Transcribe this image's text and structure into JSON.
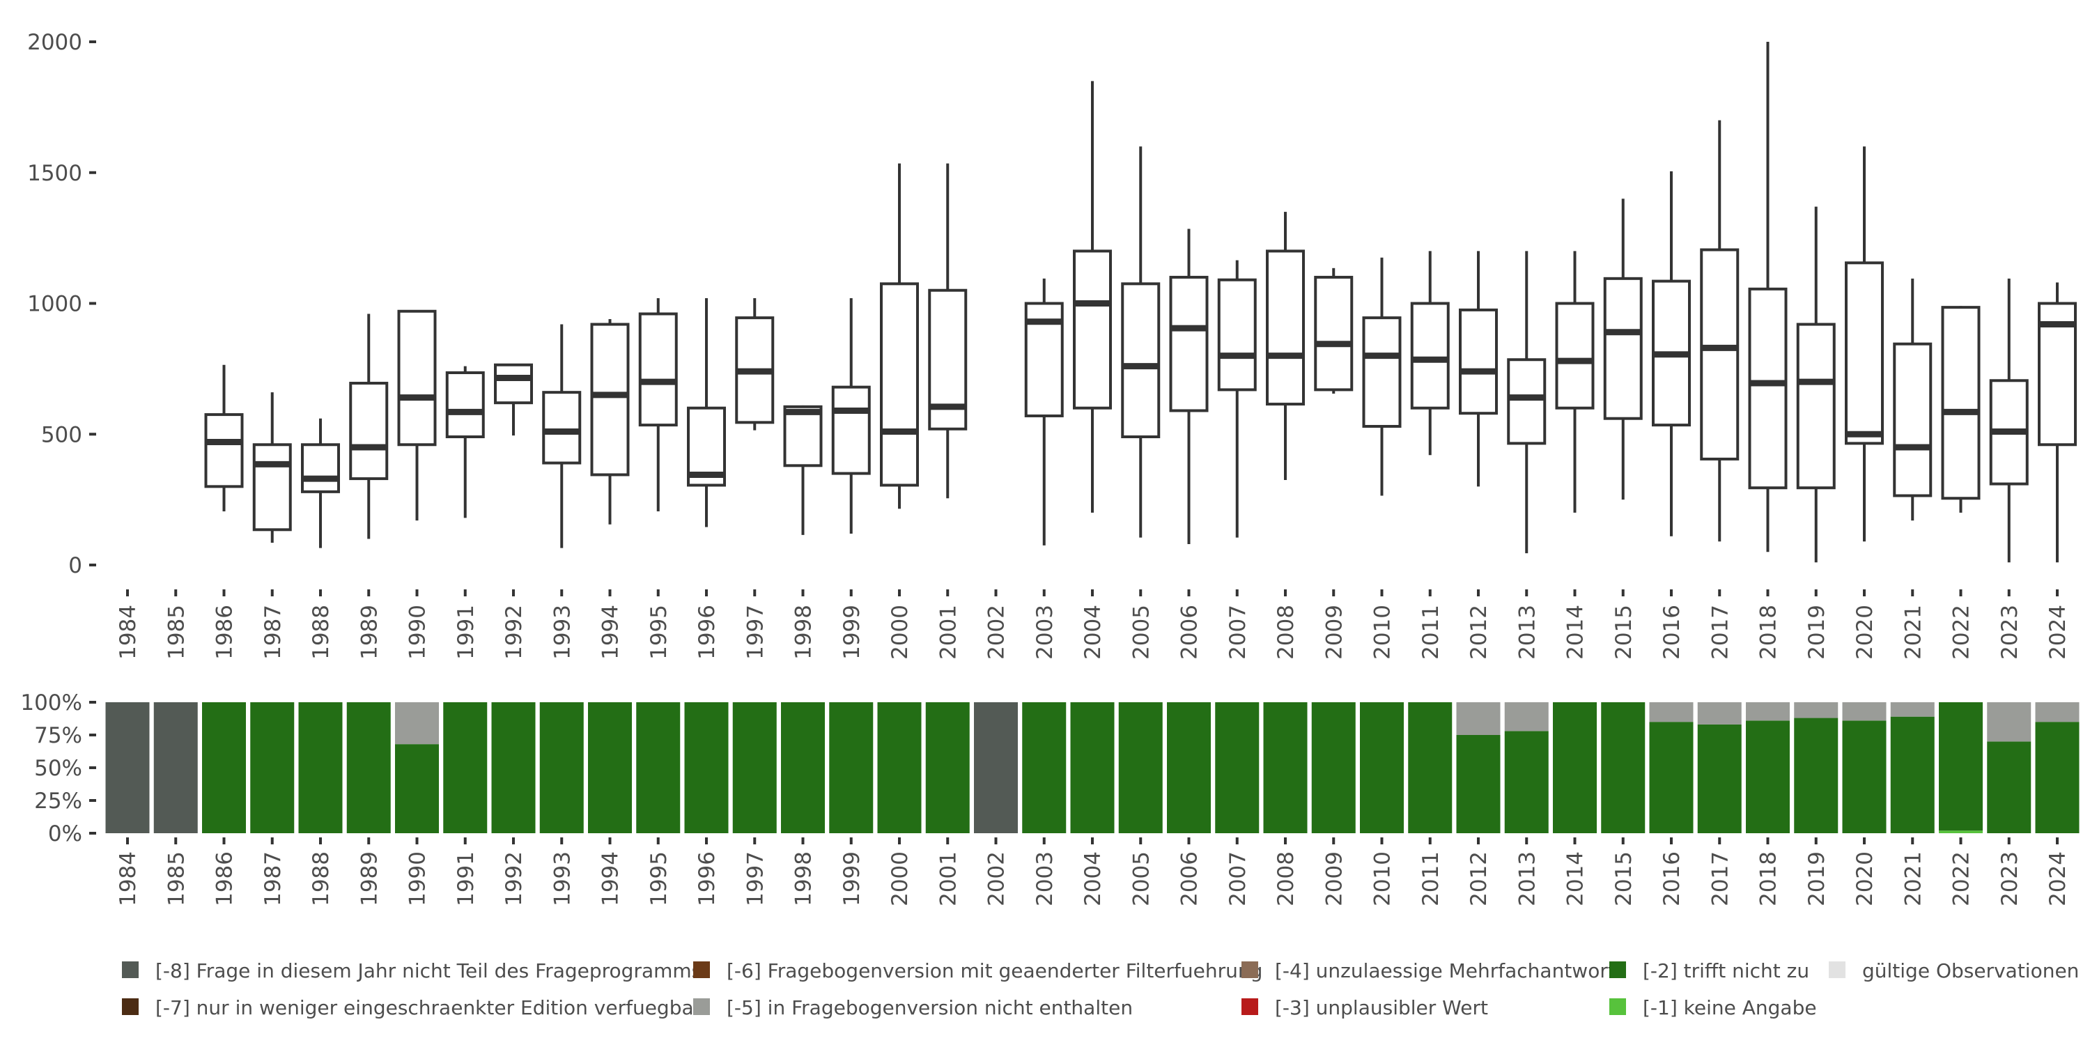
{
  "chart_data": [
    {
      "type": "boxplot",
      "title": "",
      "xlabel": "",
      "ylabel": "",
      "ylim": [
        0,
        2000
      ],
      "yticks": [
        0,
        500,
        1000,
        1500,
        2000
      ],
      "ytick_labels": [
        "0",
        "500",
        "1000",
        "1500",
        "2000"
      ],
      "categories": [
        "1984",
        "1985",
        "1986",
        "1987",
        "1988",
        "1989",
        "1990",
        "1991",
        "1992",
        "1993",
        "1994",
        "1995",
        "1996",
        "1997",
        "1998",
        "1999",
        "2000",
        "2001",
        "2002",
        "2003",
        "2004",
        "2005",
        "2006",
        "2007",
        "2008",
        "2009",
        "2010",
        "2011",
        "2012",
        "2013",
        "2014",
        "2015",
        "2016",
        "2017",
        "2018",
        "2019",
        "2020",
        "2021",
        "2022",
        "2023",
        "2024"
      ],
      "boxes": [
        null,
        null,
        {
          "min": 205,
          "q1": 300,
          "median": 470,
          "q3": 575,
          "max": 765
        },
        {
          "min": 85,
          "q1": 135,
          "median": 385,
          "q3": 460,
          "max": 660
        },
        {
          "min": 65,
          "q1": 280,
          "median": 330,
          "q3": 460,
          "max": 560
        },
        {
          "min": 100,
          "q1": 330,
          "median": 450,
          "q3": 695,
          "max": 960
        },
        {
          "min": 170,
          "q1": 460,
          "median": 640,
          "q3": 970,
          "max": 970
        },
        {
          "min": 180,
          "q1": 490,
          "median": 585,
          "q3": 735,
          "max": 760
        },
        {
          "min": 495,
          "q1": 620,
          "median": 715,
          "q3": 765,
          "max": 765
        },
        {
          "min": 65,
          "q1": 390,
          "median": 510,
          "q3": 660,
          "max": 920
        },
        {
          "min": 155,
          "q1": 345,
          "median": 650,
          "q3": 920,
          "max": 940
        },
        {
          "min": 205,
          "q1": 535,
          "median": 700,
          "q3": 960,
          "max": 1020
        },
        {
          "min": 145,
          "q1": 305,
          "median": 345,
          "q3": 600,
          "max": 1020
        },
        {
          "min": 515,
          "q1": 545,
          "median": 740,
          "q3": 945,
          "max": 1020
        },
        {
          "min": 115,
          "q1": 380,
          "median": 585,
          "q3": 605,
          "max": 610
        },
        {
          "min": 120,
          "q1": 350,
          "median": 590,
          "q3": 680,
          "max": 1020
        },
        {
          "min": 215,
          "q1": 305,
          "median": 510,
          "q3": 1075,
          "max": 1535
        },
        {
          "min": 255,
          "q1": 520,
          "median": 605,
          "q3": 1050,
          "max": 1535
        },
        null,
        {
          "min": 75,
          "q1": 570,
          "median": 930,
          "q3": 1000,
          "max": 1095
        },
        {
          "min": 200,
          "q1": 600,
          "median": 1000,
          "q3": 1200,
          "max": 1850
        },
        {
          "min": 105,
          "q1": 490,
          "median": 760,
          "q3": 1075,
          "max": 1600
        },
        {
          "min": 80,
          "q1": 590,
          "median": 905,
          "q3": 1100,
          "max": 1285
        },
        {
          "min": 105,
          "q1": 670,
          "median": 800,
          "q3": 1090,
          "max": 1165
        },
        {
          "min": 325,
          "q1": 615,
          "median": 800,
          "q3": 1200,
          "max": 1350
        },
        {
          "min": 655,
          "q1": 670,
          "median": 845,
          "q3": 1100,
          "max": 1135
        },
        {
          "min": 265,
          "q1": 530,
          "median": 800,
          "q3": 945,
          "max": 1175
        },
        {
          "min": 420,
          "q1": 600,
          "median": 785,
          "q3": 1000,
          "max": 1200
        },
        {
          "min": 300,
          "q1": 580,
          "median": 740,
          "q3": 975,
          "max": 1200
        },
        {
          "min": 45,
          "q1": 465,
          "median": 640,
          "q3": 785,
          "max": 1200
        },
        {
          "min": 200,
          "q1": 600,
          "median": 780,
          "q3": 1000,
          "max": 1200
        },
        {
          "min": 250,
          "q1": 560,
          "median": 890,
          "q3": 1095,
          "max": 1400
        },
        {
          "min": 110,
          "q1": 535,
          "median": 805,
          "q3": 1085,
          "max": 1505
        },
        {
          "min": 90,
          "q1": 405,
          "median": 830,
          "q3": 1205,
          "max": 1700
        },
        {
          "min": 50,
          "q1": 295,
          "median": 695,
          "q3": 1055,
          "max": 2000
        },
        {
          "min": 10,
          "q1": 295,
          "median": 700,
          "q3": 920,
          "max": 1370
        },
        {
          "min": 90,
          "q1": 465,
          "median": 500,
          "q3": 1155,
          "max": 1600
        },
        {
          "min": 170,
          "q1": 265,
          "median": 450,
          "q3": 845,
          "max": 1095
        },
        {
          "min": 200,
          "q1": 255,
          "median": 585,
          "q3": 985,
          "max": 990
        },
        {
          "min": 10,
          "q1": 310,
          "median": 510,
          "q3": 705,
          "max": 1095
        },
        {
          "min": 10,
          "q1": 460,
          "median": 920,
          "q3": 1000,
          "max": 1080
        }
      ]
    },
    {
      "type": "stacked_bar_percent",
      "title": "",
      "xlabel": "",
      "ylabel": "",
      "ylim": [
        0,
        100
      ],
      "yticks": [
        0,
        25,
        50,
        75,
        100
      ],
      "ytick_labels": [
        "0%",
        "25%",
        "50%",
        "75%",
        "100%"
      ],
      "categories": [
        "1984",
        "1985",
        "1986",
        "1987",
        "1988",
        "1989",
        "1990",
        "1991",
        "1992",
        "1993",
        "1994",
        "1995",
        "1996",
        "1997",
        "1998",
        "1999",
        "2000",
        "2001",
        "2002",
        "2003",
        "2004",
        "2005",
        "2006",
        "2007",
        "2008",
        "2009",
        "2010",
        "2011",
        "2012",
        "2013",
        "2014",
        "2015",
        "2016",
        "2017",
        "2018",
        "2019",
        "2020",
        "2021",
        "2022",
        "2023",
        "2024"
      ],
      "series": [
        {
          "name": "[-8] Frage in diesem Jahr nicht Teil des Frageprogramms",
          "color": "#535a55",
          "values": [
            100,
            100,
            0,
            0,
            0,
            0,
            0,
            0,
            0,
            0,
            0,
            0,
            0,
            0,
            0,
            0,
            0,
            0,
            100,
            0,
            0,
            0,
            0,
            0,
            0,
            0,
            0,
            0,
            0,
            0,
            0,
            0,
            0,
            0,
            0,
            0,
            0,
            0,
            0,
            0,
            0
          ]
        },
        {
          "name": "[-1] keine Angabe",
          "color": "#57c23c",
          "values": [
            0,
            0,
            0,
            0,
            0,
            0,
            0,
            0,
            0,
            0,
            0,
            0,
            0,
            0,
            0,
            0,
            0,
            0,
            0,
            0,
            0,
            0,
            0,
            0,
            0,
            0,
            0,
            0,
            0,
            0,
            0,
            0,
            0,
            0,
            0,
            0,
            0,
            0,
            2,
            0,
            0
          ]
        },
        {
          "name": "[-2] trifft nicht zu",
          "color": "#236e15",
          "values": [
            0,
            0,
            100,
            100,
            100,
            100,
            68,
            100,
            100,
            100,
            100,
            100,
            100,
            100,
            100,
            100,
            100,
            100,
            0,
            100,
            100,
            100,
            100,
            100,
            100,
            100,
            100,
            100,
            75,
            78,
            100,
            100,
            85,
            83,
            86,
            88,
            86,
            89,
            98,
            70,
            85
          ]
        },
        {
          "name": "[-5] in Fragebogenversion nicht enthalten",
          "color": "#9a9c98",
          "values": [
            0,
            0,
            0,
            0,
            0,
            0,
            32,
            0,
            0,
            0,
            0,
            0,
            0,
            0,
            0,
            0,
            0,
            0,
            0,
            0,
            0,
            0,
            0,
            0,
            0,
            0,
            0,
            0,
            25,
            22,
            0,
            0,
            15,
            17,
            14,
            12,
            14,
            11,
            0,
            30,
            15
          ]
        }
      ]
    }
  ],
  "legend": {
    "items": [
      {
        "label": "[-8] Frage in diesem Jahr nicht Teil des Frageprogramms",
        "color": "#535a55"
      },
      {
        "label": "[-7] nur in weniger eingeschraenkter Edition verfuegbar",
        "color": "#4c2c14"
      },
      {
        "label": "[-6] Fragebogenversion mit geaenderter Filterfuehrung",
        "color": "#6b3a17"
      },
      {
        "label": "[-5] in Fragebogenversion nicht enthalten",
        "color": "#9a9c98"
      },
      {
        "label": "[-4] unzulaessige Mehrfachantwort",
        "color": "#8b6c56"
      },
      {
        "label": "[-3] unplausibler Wert",
        "color": "#b81b1b"
      },
      {
        "label": "[-2] trifft nicht zu",
        "color": "#236e15"
      },
      {
        "label": "[-1] keine Angabe",
        "color": "#57c23c"
      },
      {
        "label": "gültige Observationen",
        "color": "#e2e2e2"
      }
    ]
  }
}
